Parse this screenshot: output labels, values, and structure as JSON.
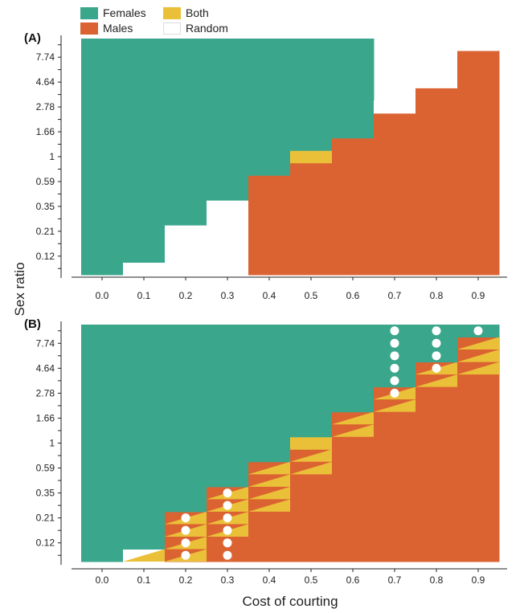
{
  "legend": {
    "items": [
      {
        "key": "females",
        "label": "Females",
        "color": "#3aa68c"
      },
      {
        "key": "males",
        "label": "Males",
        "color": "#db6331"
      },
      {
        "key": "both",
        "label": "Both",
        "color": "#eac039"
      },
      {
        "key": "random",
        "label": "Random",
        "color": "#ffffff"
      }
    ]
  },
  "colors": {
    "females": "#3aa68c",
    "males": "#db6331",
    "both": "#eac039",
    "random": "#ffffff",
    "dot": "#ffffff"
  },
  "chart_data": [
    {
      "type": "heatmap",
      "panel_label": "(A)",
      "xlabel": "Cost of courting",
      "ylabel": "Sex ratio",
      "x_ticks": [
        "0.0",
        "0.1",
        "0.2",
        "0.3",
        "0.4",
        "0.5",
        "0.6",
        "0.7",
        "0.8",
        "0.9"
      ],
      "y_ticks": [
        "0.12",
        "0.21",
        "0.35",
        "0.59",
        "1",
        "1.66",
        "2.78",
        "4.64",
        "7.74"
      ],
      "y_scale": "log",
      "x_values": [
        0.0,
        0.1,
        0.2,
        0.3,
        0.4,
        0.5,
        0.6,
        0.7,
        0.8,
        0.9
      ],
      "y_values": [
        0.09,
        0.12,
        0.16,
        0.21,
        0.27,
        0.35,
        0.46,
        0.59,
        0.77,
        1,
        1.29,
        1.66,
        2.15,
        2.78,
        3.59,
        4.64,
        6,
        7.74,
        10
      ],
      "columns": [
        {
          "x": 0.0,
          "segments": [
            {
              "from": 0,
              "to": 19,
              "class": "females"
            }
          ]
        },
        {
          "x": 0.1,
          "segments": [
            {
              "from": 0,
              "to": 1,
              "class": "random"
            },
            {
              "from": 1,
              "to": 19,
              "class": "females"
            }
          ]
        },
        {
          "x": 0.2,
          "segments": [
            {
              "from": 0,
              "to": 4,
              "class": "random"
            },
            {
              "from": 4,
              "to": 19,
              "class": "females"
            }
          ]
        },
        {
          "x": 0.3,
          "segments": [
            {
              "from": 0,
              "to": 6,
              "class": "random"
            },
            {
              "from": 6,
              "to": 19,
              "class": "females"
            }
          ]
        },
        {
          "x": 0.4,
          "segments": [
            {
              "from": 0,
              "to": 8,
              "class": "males"
            },
            {
              "from": 8,
              "to": 19,
              "class": "females"
            }
          ]
        },
        {
          "x": 0.5,
          "segments": [
            {
              "from": 0,
              "to": 9,
              "class": "males"
            },
            {
              "from": 9,
              "to": 10,
              "class": "both"
            },
            {
              "from": 10,
              "to": 19,
              "class": "females"
            }
          ]
        },
        {
          "x": 0.6,
          "segments": [
            {
              "from": 0,
              "to": 11,
              "class": "males"
            },
            {
              "from": 11,
              "to": 19,
              "class": "females"
            }
          ]
        },
        {
          "x": 0.7,
          "segments": [
            {
              "from": 0,
              "to": 13,
              "class": "males"
            },
            {
              "from": 13,
              "to": 14,
              "class": "random"
            }
          ]
        },
        {
          "x": 0.8,
          "segments": [
            {
              "from": 0,
              "to": 15,
              "class": "males"
            }
          ]
        },
        {
          "x": 0.9,
          "segments": [
            {
              "from": 0,
              "to": 18,
              "class": "males"
            }
          ]
        }
      ],
      "dots": []
    },
    {
      "type": "heatmap",
      "panel_label": "(B)",
      "xlabel": "Cost of courting",
      "ylabel": "Sex ratio",
      "x_ticks": [
        "0.0",
        "0.1",
        "0.2",
        "0.3",
        "0.4",
        "0.5",
        "0.6",
        "0.7",
        "0.8",
        "0.9"
      ],
      "y_ticks": [
        "0.12",
        "0.21",
        "0.35",
        "0.59",
        "1",
        "1.66",
        "2.78",
        "4.64",
        "7.74"
      ],
      "y_scale": "log",
      "x_values": [
        0.0,
        0.1,
        0.2,
        0.3,
        0.4,
        0.5,
        0.6,
        0.7,
        0.8,
        0.9
      ],
      "y_values": [
        0.09,
        0.12,
        0.16,
        0.21,
        0.27,
        0.35,
        0.46,
        0.59,
        0.77,
        1,
        1.29,
        1.66,
        2.15,
        2.78,
        3.59,
        4.64,
        6,
        7.74,
        10
      ],
      "columns": [
        {
          "x": 0.0,
          "segments": [
            {
              "from": 0,
              "to": 19,
              "class": "females"
            }
          ]
        },
        {
          "x": 0.1,
          "segments": [
            {
              "from": 0,
              "to": 1,
              "class": "mixed-random-both"
            },
            {
              "from": 1,
              "to": 19,
              "class": "females"
            }
          ]
        },
        {
          "x": 0.2,
          "segments": [
            {
              "from": 0,
              "to": 4,
              "class": "mixed-males-both"
            },
            {
              "from": 4,
              "to": 19,
              "class": "females"
            }
          ]
        },
        {
          "x": 0.3,
          "segments": [
            {
              "from": 0,
              "to": 2,
              "class": "males"
            },
            {
              "from": 2,
              "to": 6,
              "class": "mixed-males-both"
            },
            {
              "from": 6,
              "to": 19,
              "class": "females"
            }
          ]
        },
        {
          "x": 0.4,
          "segments": [
            {
              "from": 0,
              "to": 4,
              "class": "males"
            },
            {
              "from": 4,
              "to": 8,
              "class": "mixed-males-both"
            },
            {
              "from": 8,
              "to": 19,
              "class": "females"
            }
          ]
        },
        {
          "x": 0.5,
          "segments": [
            {
              "from": 0,
              "to": 7,
              "class": "males"
            },
            {
              "from": 7,
              "to": 9,
              "class": "mixed-males-both"
            },
            {
              "from": 9,
              "to": 10,
              "class": "both"
            },
            {
              "from": 10,
              "to": 19,
              "class": "females"
            }
          ]
        },
        {
          "x": 0.6,
          "segments": [
            {
              "from": 0,
              "to": 10,
              "class": "males"
            },
            {
              "from": 10,
              "to": 12,
              "class": "mixed-males-both"
            },
            {
              "from": 12,
              "to": 19,
              "class": "females"
            }
          ]
        },
        {
          "x": 0.7,
          "segments": [
            {
              "from": 0,
              "to": 12,
              "class": "males"
            },
            {
              "from": 12,
              "to": 14,
              "class": "mixed-males-both"
            },
            {
              "from": 14,
              "to": 19,
              "class": "females"
            }
          ]
        },
        {
          "x": 0.8,
          "segments": [
            {
              "from": 0,
              "to": 14,
              "class": "males"
            },
            {
              "from": 14,
              "to": 16,
              "class": "mixed-males-both"
            },
            {
              "from": 16,
              "to": 19,
              "class": "females"
            }
          ]
        },
        {
          "x": 0.9,
          "segments": [
            {
              "from": 0,
              "to": 15,
              "class": "males"
            },
            {
              "from": 15,
              "to": 18,
              "class": "mixed-males-both"
            },
            {
              "from": 18,
              "to": 19,
              "class": "females"
            }
          ]
        }
      ],
      "dots": [
        {
          "x": 0.2,
          "y": 0.09
        },
        {
          "x": 0.2,
          "y": 0.12
        },
        {
          "x": 0.2,
          "y": 0.16
        },
        {
          "x": 0.2,
          "y": 0.21
        },
        {
          "x": 0.3,
          "y": 0.09
        },
        {
          "x": 0.3,
          "y": 0.12
        },
        {
          "x": 0.3,
          "y": 0.16
        },
        {
          "x": 0.3,
          "y": 0.21
        },
        {
          "x": 0.3,
          "y": 0.27
        },
        {
          "x": 0.3,
          "y": 0.35
        },
        {
          "x": 0.7,
          "y": 2.78
        },
        {
          "x": 0.7,
          "y": 3.59
        },
        {
          "x": 0.7,
          "y": 4.64
        },
        {
          "x": 0.7,
          "y": 6
        },
        {
          "x": 0.7,
          "y": 7.74
        },
        {
          "x": 0.7,
          "y": 10
        },
        {
          "x": 0.8,
          "y": 4.64
        },
        {
          "x": 0.8,
          "y": 6
        },
        {
          "x": 0.8,
          "y": 7.74
        },
        {
          "x": 0.8,
          "y": 10
        },
        {
          "x": 0.9,
          "y": 10
        }
      ]
    }
  ]
}
